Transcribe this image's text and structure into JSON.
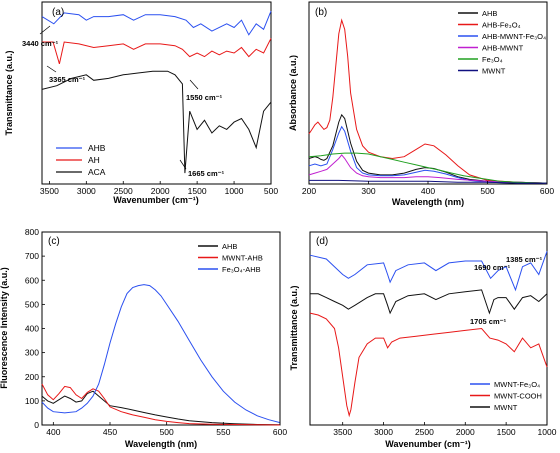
{
  "chart_data": [
    {
      "panel": "(a)",
      "type": "line",
      "xlabel": "Wavenumber (cm⁻¹)",
      "ylabel": "Transmittance (a.u.)",
      "xlim": [
        3600,
        500
      ],
      "x_reversed": true,
      "xticks": [
        "3500",
        "3000",
        "2500",
        "2000",
        "1500",
        "1000",
        "500"
      ],
      "yticks_shown": false,
      "legend_position": "bottom-left",
      "series": [
        {
          "name": "AHB",
          "color": "#2b50f0",
          "x": [
            3600,
            3440,
            3300,
            3100,
            3000,
            2900,
            2700,
            2500,
            2360,
            2200,
            2000,
            1800,
            1650,
            1550,
            1450,
            1300,
            1100,
            1000,
            900,
            800,
            700,
            600,
            500
          ],
          "y": [
            92,
            88,
            94,
            93,
            90,
            92,
            92,
            93,
            90,
            93,
            93,
            92,
            90,
            86,
            88,
            84,
            88,
            86,
            90,
            82,
            88,
            85,
            95
          ]
        },
        {
          "name": "AH",
          "color": "#e81818",
          "x": [
            3600,
            3450,
            3365,
            3300,
            3100,
            2900,
            2700,
            2500,
            2360,
            2200,
            2000,
            1800,
            1700,
            1600,
            1500,
            1400,
            1300,
            1200,
            1100,
            1000,
            900,
            800,
            700,
            600,
            500
          ],
          "y": [
            78,
            78,
            66,
            78,
            77,
            75,
            76,
            77,
            74,
            77,
            77,
            76,
            74,
            70,
            72,
            70,
            73,
            71,
            73,
            72,
            75,
            70,
            74,
            72,
            80
          ]
        },
        {
          "name": "ACA",
          "color": "#111111",
          "x": [
            3600,
            3400,
            3200,
            3000,
            2900,
            2700,
            2500,
            2300,
            2100,
            1900,
            1800,
            1700,
            1665,
            1600,
            1500,
            1400,
            1300,
            1200,
            1100,
            1000,
            900,
            800,
            700,
            600,
            500
          ],
          "y": [
            52,
            54,
            58,
            60,
            57,
            58,
            60,
            61,
            62,
            62,
            60,
            55,
            6,
            40,
            30,
            35,
            28,
            32,
            30,
            34,
            36,
            30,
            20,
            40,
            45
          ]
        }
      ],
      "annotations": [
        "3440 cm⁻¹",
        "3365 cm⁻¹",
        "1550 cm⁻¹",
        "1665 cm⁻¹"
      ]
    },
    {
      "panel": "(b)",
      "type": "line",
      "xlabel": "Wavelength (nm)",
      "ylabel": "Absorbance (a.u.)",
      "xlim": [
        200,
        600
      ],
      "xticks": [
        "200",
        "300",
        "400",
        "500",
        "600"
      ],
      "yticks_shown": false,
      "legend_position": "top-right",
      "series": [
        {
          "name": "AHB",
          "color": "#111111",
          "x": [
            200,
            210,
            215,
            220,
            225,
            230,
            240,
            250,
            255,
            260,
            270,
            280,
            290,
            300,
            320,
            340,
            360,
            380,
            395,
            410,
            430,
            450,
            470,
            500,
            550,
            600
          ],
          "y": [
            28,
            30,
            29,
            27,
            26,
            28,
            42,
            68,
            76,
            72,
            45,
            25,
            15,
            12,
            10,
            10,
            12,
            16,
            18,
            17,
            13,
            8,
            5,
            3,
            2,
            1
          ]
        },
        {
          "name": "AHB-Fe₃O₄",
          "color": "#e81818",
          "x": [
            200,
            205,
            210,
            215,
            220,
            225,
            230,
            235,
            240,
            245,
            250,
            255,
            260,
            265,
            270,
            280,
            290,
            300,
            320,
            340,
            360,
            380,
            395,
            410,
            430,
            450,
            470,
            500,
            550,
            600
          ],
          "y": [
            55,
            60,
            65,
            68,
            64,
            60,
            62,
            70,
            95,
            130,
            165,
            180,
            170,
            140,
            100,
            60,
            42,
            35,
            30,
            28,
            30,
            38,
            44,
            42,
            32,
            20,
            10,
            4,
            2,
            1
          ]
        },
        {
          "name": "AHB-MWNT-Fe₃O₄",
          "color": "#2b50f0",
          "x": [
            200,
            210,
            220,
            230,
            240,
            250,
            255,
            260,
            270,
            280,
            290,
            300,
            320,
            340,
            360,
            380,
            395,
            410,
            430,
            450,
            470,
            500,
            550,
            600
          ],
          "y": [
            20,
            22,
            20,
            22,
            38,
            56,
            63,
            58,
            36,
            18,
            12,
            10,
            9,
            9,
            10,
            13,
            15,
            14,
            11,
            7,
            4,
            2,
            1,
            1
          ]
        },
        {
          "name": "AHB-MWNT",
          "color": "#c020d0",
          "x": [
            200,
            210,
            220,
            230,
            240,
            250,
            255,
            260,
            270,
            280,
            290,
            300,
            320,
            340,
            360,
            380,
            400,
            420,
            450,
            500,
            550,
            600
          ],
          "y": [
            10,
            12,
            14,
            16,
            22,
            28,
            32,
            28,
            18,
            12,
            9,
            8,
            7,
            7,
            7,
            8,
            8,
            7,
            5,
            3,
            2,
            1
          ]
        },
        {
          "name": "Fe₃O₄",
          "color": "#20a020",
          "x": [
            200,
            220,
            240,
            260,
            280,
            300,
            320,
            340,
            360,
            380,
            400,
            420,
            440,
            460,
            480,
            500,
            520,
            550,
            600
          ],
          "y": [
            30,
            31,
            33,
            34,
            34,
            33,
            30,
            27,
            24,
            21,
            18,
            15,
            12,
            9,
            7,
            5,
            3,
            2,
            1
          ]
        },
        {
          "name": "MWNT",
          "color": "#101080",
          "x": [
            200,
            250,
            300,
            350,
            400,
            450,
            500,
            550,
            600
          ],
          "y": [
            4,
            4,
            3,
            3,
            3,
            2,
            2,
            1,
            1
          ]
        }
      ]
    },
    {
      "panel": "(c)",
      "type": "line",
      "xlabel": "Wavelength (nm)",
      "ylabel": "Fluorescence Intensity (a.u.)",
      "xlim": [
        390,
        600
      ],
      "ylim": [
        0,
        800
      ],
      "xticks": [
        400,
        450,
        500,
        550,
        600
      ],
      "yticks": [
        0,
        100,
        200,
        300,
        400,
        500,
        600,
        700,
        800
      ],
      "legend_position": "top-left",
      "series": [
        {
          "name": "AHB",
          "color": "#111111",
          "x": [
            390,
            395,
            400,
            405,
            410,
            415,
            420,
            425,
            430,
            435,
            440,
            450,
            460,
            470,
            480,
            490,
            500,
            510,
            520,
            540,
            560,
            580,
            600
          ],
          "y": [
            120,
            100,
            90,
            105,
            120,
            110,
            95,
            100,
            130,
            140,
            120,
            80,
            72,
            62,
            52,
            42,
            33,
            25,
            18,
            10,
            5,
            2,
            1
          ]
        },
        {
          "name": "MWNT-AHB",
          "color": "#e81818",
          "x": [
            390,
            395,
            400,
            405,
            410,
            415,
            420,
            425,
            430,
            435,
            440,
            445,
            450,
            460,
            470,
            480,
            490,
            500,
            510,
            520,
            540,
            560,
            580,
            600
          ],
          "y": [
            170,
            125,
            105,
            130,
            160,
            155,
            125,
            110,
            135,
            150,
            140,
            110,
            75,
            55,
            42,
            32,
            22,
            15,
            10,
            6,
            3,
            2,
            1,
            0
          ]
        },
        {
          "name": "Fe₃O₄-AHB",
          "color": "#2b50f0",
          "x": [
            390,
            395,
            400,
            410,
            420,
            425,
            430,
            435,
            440,
            445,
            450,
            455,
            460,
            465,
            470,
            475,
            480,
            485,
            490,
            495,
            500,
            510,
            520,
            530,
            540,
            550,
            560,
            570,
            580,
            590,
            600
          ],
          "y": [
            95,
            70,
            55,
            50,
            55,
            70,
            90,
            120,
            170,
            250,
            340,
            420,
            490,
            545,
            570,
            578,
            582,
            578,
            560,
            535,
            500,
            430,
            350,
            270,
            200,
            140,
            95,
            62,
            38,
            22,
            10
          ]
        }
      ]
    },
    {
      "panel": "(d)",
      "type": "line",
      "xlabel": "Wavenumber (cm⁻¹)",
      "ylabel": "Transmittance (a.u.)",
      "xlim": [
        3900,
        1000
      ],
      "x_reversed": true,
      "xticks": [
        "3500",
        "3000",
        "2500",
        "2000",
        "1500",
        "1000"
      ],
      "yticks_shown": false,
      "legend_position": "bottom-right",
      "series": [
        {
          "name": "MWNT-Fe₃O₄",
          "color": "#2b50f0",
          "x": [
            3900,
            3700,
            3600,
            3500,
            3430,
            3350,
            3200,
            3000,
            2950,
            2920,
            2850,
            2700,
            2500,
            2360,
            2200,
            2000,
            1800,
            1690,
            1600,
            1500,
            1385,
            1300,
            1200,
            1100,
            1000
          ],
          "y": [
            88,
            86,
            82,
            78,
            76,
            78,
            83,
            84,
            78,
            74,
            80,
            83,
            84,
            80,
            84,
            85,
            85,
            76,
            80,
            82,
            70,
            82,
            84,
            78,
            90
          ]
        },
        {
          "name": "MWNT-COOH",
          "color": "#e81818",
          "x": [
            3900,
            3800,
            3700,
            3600,
            3550,
            3500,
            3450,
            3420,
            3400,
            3350,
            3300,
            3200,
            3100,
            3000,
            2950,
            2900,
            2800,
            2600,
            2400,
            2200,
            2000,
            1800,
            1700,
            1600,
            1500,
            1400,
            1300,
            1200,
            1100,
            1000
          ],
          "y": [
            58,
            57,
            55,
            50,
            40,
            25,
            10,
            5,
            8,
            22,
            35,
            42,
            45,
            45,
            40,
            43,
            45,
            46,
            47,
            48,
            49,
            50,
            45,
            44,
            42,
            38,
            45,
            40,
            42,
            30
          ]
        },
        {
          "name": "MWNT",
          "color": "#111111",
          "x": [
            3900,
            3800,
            3700,
            3600,
            3500,
            3430,
            3350,
            3200,
            3100,
            3000,
            2950,
            2920,
            2850,
            2700,
            2500,
            2360,
            2200,
            2000,
            1800,
            1705,
            1650,
            1600,
            1500,
            1400,
            1300,
            1200,
            1100,
            1000
          ],
          "y": [
            68,
            68,
            66,
            64,
            62,
            60,
            62,
            66,
            68,
            68,
            62,
            58,
            64,
            67,
            68,
            65,
            68,
            69,
            70,
            58,
            65,
            66,
            66,
            60,
            66,
            67,
            64,
            68
          ]
        }
      ],
      "annotations": [
        "1690 cm⁻¹",
        "1385 cm⁻¹",
        "1705 cm⁻¹"
      ]
    }
  ]
}
